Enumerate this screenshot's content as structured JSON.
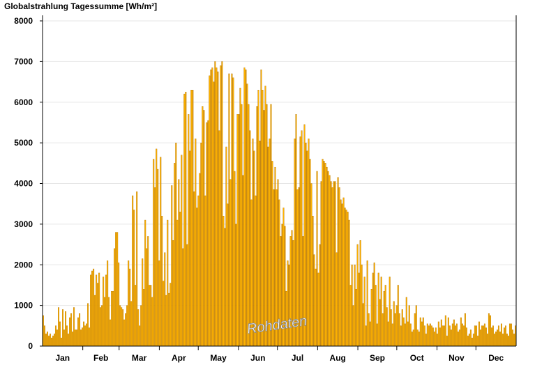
{
  "chart_data": {
    "type": "bar",
    "title": "Globalstrahlung Tagessumme [Wh/m²]",
    "ylim": [
      0,
      8000
    ],
    "yticks": [
      0,
      1000,
      2000,
      3000,
      4000,
      5000,
      6000,
      7000,
      8000
    ],
    "months": [
      "Jan",
      "Feb",
      "Mar",
      "Apr",
      "May",
      "Jun",
      "Jul",
      "Aug",
      "Sep",
      "Oct",
      "Nov",
      "Dec"
    ],
    "watermark": "Rohdaten",
    "grid": true,
    "bar_color": "#FFB300",
    "bar_edge_color": "#B07000",
    "series": [
      {
        "values": [
          750,
          500,
          300,
          350,
          250,
          300,
          200,
          250,
          300,
          500,
          400,
          950,
          600,
          200,
          900,
          400,
          850,
          500,
          300,
          700,
          800,
          350,
          950,
          400,
          400,
          700,
          800,
          400,
          450,
          600,
          500,
          550,
          1050,
          450,
          1750,
          1850,
          1900,
          1250,
          1750,
          1550,
          1800,
          950,
          1000,
          1700,
          1200,
          1750,
          2100,
          1200,
          650,
          1350,
          1350,
          2400,
          2800,
          2800,
          2050,
          1000,
          950,
          900,
          650,
          800,
          1000,
          2100,
          1900,
          1100,
          3700,
          3350,
          1500,
          3800,
          900,
          500,
          1000,
          2150,
          1400,
          3100,
          2400,
          2700,
          1500,
          1500,
          1200,
          4600,
          3900,
          4850,
          4350,
          2100,
          4650,
          3200,
          1600,
          2300,
          1250,
          3100,
          1300,
          1550,
          3950,
          2600,
          4500,
          5000,
          3100,
          4100,
          3300,
          4700,
          2400,
          6200,
          6250,
          2500,
          5700,
          4800,
          6300,
          6300,
          3800,
          5100,
          3400,
          3700,
          4250,
          5000,
          5900,
          5800,
          3700,
          5500,
          5550,
          6650,
          6800,
          6850,
          6500,
          7000,
          6850,
          6750,
          5300,
          6900,
          7000,
          3200,
          2900,
          4900,
          3500,
          6700,
          4100,
          6700,
          6600,
          4300,
          3000,
          5700,
          5700,
          6350,
          5950,
          4200,
          6850,
          6800,
          6450,
          5950,
          5300,
          3600,
          5100,
          4800,
          3700,
          5900,
          6300,
          5050,
          6800,
          6300,
          5800,
          6400,
          5950,
          4900,
          5100,
          5950,
          4550,
          3850,
          4400,
          3850,
          4100,
          3600,
          2700,
          3000,
          3400,
          2950,
          1350,
          2100,
          2000,
          2700,
          2850,
          2600,
          5100,
          5700,
          3850,
          3900,
          5150,
          5300,
          2700,
          5450,
          5000,
          4800,
          5100,
          4600,
          4000,
          3200,
          2250,
          1900,
          4300,
          1800,
          2500,
          4050,
          4600,
          4550,
          4500,
          4400,
          4300,
          4200,
          4050,
          3900,
          4050,
          4050,
          2300,
          4150,
          3900,
          3600,
          3500,
          3650,
          3400,
          3350,
          3300,
          3100,
          1500,
          2000,
          1000,
          2000,
          1400,
          2500,
          1800,
          2600,
          2000,
          1050,
          1700,
          500,
          2100,
          800,
          600,
          1400,
          1800,
          2050,
          1500,
          550,
          1800,
          1150,
          1700,
          800,
          1350,
          1500,
          950,
          600,
          1700,
          900,
          550,
          1100,
          800,
          1000,
          1500,
          800,
          500,
          900,
          700,
          550,
          1200,
          600,
          1000,
          550,
          350,
          400,
          800,
          1000,
          400,
          350,
          700,
          600,
          700,
          500,
          300,
          550,
          500,
          550,
          500,
          450,
          350,
          450,
          300,
          600,
          450,
          650,
          500,
          500,
          750,
          250,
          700,
          500,
          400,
          550,
          650,
          500,
          550,
          350,
          400,
          700,
          550,
          500,
          800,
          450,
          250,
          300,
          400,
          200,
          300,
          500,
          500,
          250,
          600,
          400,
          500,
          500,
          550,
          450,
          300,
          800,
          750,
          450,
          500,
          300,
          350,
          400,
          500,
          350,
          550,
          300,
          450,
          500,
          300,
          250,
          550,
          550,
          400,
          300,
          500
        ]
      }
    ]
  }
}
